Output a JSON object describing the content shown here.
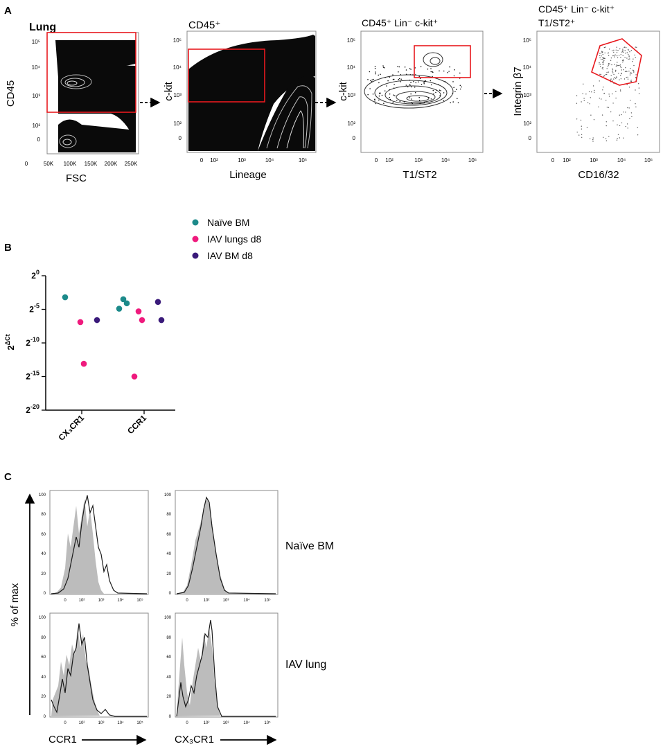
{
  "panel_letters": {
    "a": "A",
    "b": "B",
    "c": "C"
  },
  "panel_a": {
    "plots": [
      {
        "title": "Lung",
        "title_bold": true,
        "ylabel": "CD45",
        "xlabel": "FSC",
        "xticks": [
          "0",
          "50K",
          "100K",
          "150K",
          "200K",
          "250K"
        ],
        "yticks": [
          "10⁵",
          "10⁴",
          "10³",
          "10²",
          "0"
        ]
      },
      {
        "title": "CD45⁺",
        "ylabel": "c-kit",
        "xlabel": "Lineage",
        "xticks": [
          "0",
          "10²",
          "10³",
          "10⁴",
          "10⁵"
        ],
        "yticks": [
          "10⁵",
          "10⁴",
          "10³",
          "10²",
          "0"
        ]
      },
      {
        "title": "CD45⁺ Lin⁻ c-kit⁺",
        "ylabel": "c-kit",
        "xlabel": "T1/ST2",
        "xticks": [
          "0",
          "10²",
          "10³",
          "10⁴",
          "10⁵"
        ],
        "yticks": [
          "10⁵",
          "10⁴",
          "10³",
          "10²",
          "0"
        ]
      },
      {
        "title_line1": "CD45⁺ Lin⁻ c-kit⁺",
        "title_line2": "T1/ST2⁺",
        "ylabel": "Integrin β7",
        "xlabel": "CD16/32",
        "xticks": [
          "0",
          "10²",
          "10³",
          "10⁴",
          "10⁵"
        ],
        "yticks": [
          "10⁵",
          "10⁴",
          "10³",
          "10²",
          "0"
        ]
      }
    ]
  },
  "chart_data": {
    "type": "scatter",
    "ylabel": "2ΔCt",
    "ylabel_base": "2",
    "ylabel_exp": "ΔCt",
    "y_scale": "log2",
    "ylim": [
      -20,
      0
    ],
    "yticks": [
      {
        "base": "2",
        "exp": "0",
        "value": 0
      },
      {
        "base": "2",
        "exp": "-5",
        "value": -5
      },
      {
        "base": "2",
        "exp": "-10",
        "value": -10
      },
      {
        "base": "2",
        "exp": "-15",
        "value": -15
      },
      {
        "base": "2",
        "exp": "-20",
        "value": -20
      }
    ],
    "categories": [
      "CX3CR1",
      "CCR1"
    ],
    "category_labels": [
      "CX₃CR1",
      "CCR1"
    ],
    "legend_position": "top",
    "series": [
      {
        "name": "Naïve BM",
        "color": "#1c8a8a",
        "points": [
          {
            "category": 0,
            "y": -3.2
          },
          {
            "category": 1,
            "y": -3.5
          },
          {
            "category": 1,
            "y": -4.1
          },
          {
            "category": 1,
            "y": -4.9
          }
        ]
      },
      {
        "name": "IAV lungs d8",
        "color": "#ef1a7d",
        "points": [
          {
            "category": 0,
            "y": -6.9
          },
          {
            "category": 0,
            "y": -13.1
          },
          {
            "category": 1,
            "y": -5.3
          },
          {
            "category": 1,
            "y": -6.6
          },
          {
            "category": 1,
            "y": -15.0
          }
        ]
      },
      {
        "name": "IAV BM d8",
        "color": "#3a1a7a",
        "points": [
          {
            "category": 0,
            "y": -6.6
          },
          {
            "category": 1,
            "y": -3.9
          },
          {
            "category": 1,
            "y": -6.6
          }
        ]
      }
    ]
  },
  "panel_c": {
    "ylabel": "% of max",
    "row_labels": [
      "Naïve BM",
      "IAV lung"
    ],
    "xlabels": [
      "CCR1",
      "CX₃CR1"
    ],
    "yticks": [
      "100",
      "80",
      "60",
      "40",
      "20",
      "0"
    ],
    "xticks": [
      "0",
      "10²",
      "10³",
      "10⁴",
      "10⁵"
    ]
  }
}
